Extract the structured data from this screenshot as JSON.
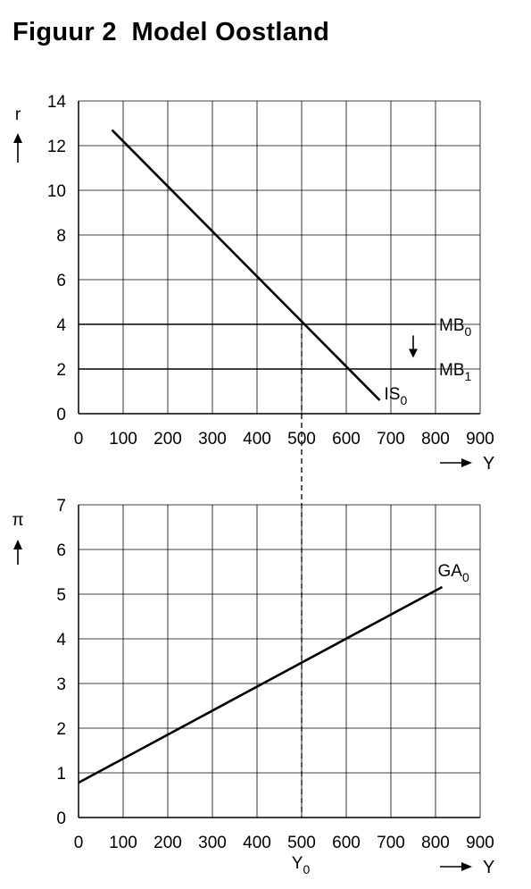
{
  "title": "Figuur 2  Model Oostland",
  "chart_data": [
    {
      "type": "line",
      "x_axis": {
        "symbol": "Y",
        "ticks": [
          0,
          100,
          200,
          300,
          400,
          500,
          600,
          700,
          800,
          900
        ],
        "range": [
          0,
          900
        ]
      },
      "y_axis": {
        "symbol": "r",
        "ticks": [
          0,
          2,
          4,
          6,
          8,
          10,
          12,
          14
        ],
        "range": [
          0,
          14
        ]
      },
      "grid": true,
      "series": [
        {
          "base": "IS",
          "sub": "0",
          "points": [
            [
              75,
              12.7
            ],
            [
              675,
              0.6
            ]
          ]
        },
        {
          "base": "MB",
          "sub": "0",
          "points": [
            [
              0,
              4
            ],
            [
              800,
              4
            ]
          ]
        },
        {
          "base": "MB",
          "sub": "1",
          "points": [
            [
              0,
              2
            ],
            [
              800,
              2
            ]
          ]
        }
      ],
      "annotations": [
        {
          "type": "arrow-down",
          "x": 750,
          "from": 3.5,
          "to": 2.5
        }
      ]
    },
    {
      "type": "line",
      "x_axis": {
        "symbol": "Y",
        "ticks": [
          0,
          100,
          200,
          300,
          400,
          500,
          600,
          700,
          800,
          900
        ],
        "range": [
          0,
          900
        ]
      },
      "y_axis": {
        "symbol": "π",
        "ticks": [
          0,
          1,
          2,
          3,
          4,
          5,
          6,
          7
        ],
        "range": [
          0,
          7
        ]
      },
      "grid": true,
      "series": [
        {
          "base": "GA",
          "sub": "0",
          "points": [
            [
              0,
              0.78
            ],
            [
              815,
              5.16
            ]
          ]
        }
      ]
    }
  ],
  "reference_line": {
    "x": 500,
    "label_base": "Y",
    "label_sub": "0",
    "style": "dashed"
  }
}
